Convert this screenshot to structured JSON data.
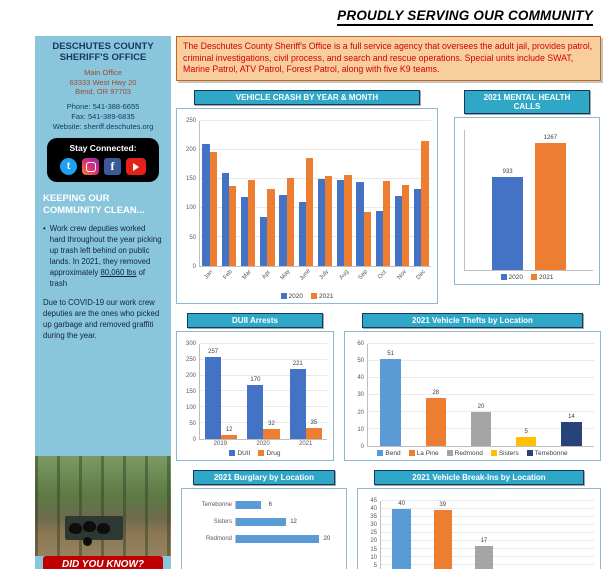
{
  "banner": {
    "text": "PROUDLY SERVING OUR COMMUNITY"
  },
  "sidebar": {
    "org_line1": "DESCHUTES COUNTY",
    "org_line2": "SHERIFF'S OFFICE",
    "address_lines": [
      "Main Office",
      "63333 West Hwy 20",
      "Bend, OR 97703"
    ],
    "contact_lines": [
      "Phone: 541-388-6655",
      "Fax: 541-389-6835",
      "Website: sheriff.deschutes.org"
    ],
    "stay_connected": "Stay Connected:",
    "social_icons": [
      "twitter-icon",
      "instagram-icon",
      "facebook-icon",
      "youtube-icon"
    ],
    "clean_heading": "KEEPING OUR COMMUNITY CLEAN...",
    "clean_text_pre": "Work crew deputies worked hard throughout the year picking up trash left behind on public lands. In 2021, they removed approximately ",
    "clean_text_underlined": "80,060 lbs",
    "clean_text_post": " of trash",
    "covid_text": "Due to COVID-19 our work crew deputies are the ones who picked up garbage and removed graffiti during the year.",
    "did_you_know": "DID YOU KNOW?"
  },
  "intro": {
    "text": "The Deschutes County Sheriff's Office is a full service agency that oversees the adult jail, provides patrol, criminal investigations, civil process, and search and rescue operations. Special units include SWAT, Marine Patrol, ATV Patrol, Forest Patrol, along with five K9 teams."
  },
  "chart_data": [
    {
      "type": "bar",
      "title": "VEHICLE CRASH BY YEAR & MONTH",
      "categories": [
        "Jan",
        "Feb",
        "Mar",
        "Apr",
        "May",
        "June",
        "July",
        "Aug",
        "Sep",
        "Oct",
        "Nov",
        "Dec"
      ],
      "series": [
        {
          "name": "2020",
          "color": "#4472C4",
          "values": [
            210,
            160,
            118,
            85,
            122,
            110,
            150,
            148,
            145,
            95,
            120,
            133
          ]
        },
        {
          "name": "2021",
          "color": "#ED7D31",
          "values": [
            196,
            138,
            148,
            133,
            152,
            186,
            155,
            157,
            92,
            146,
            140,
            215
          ]
        }
      ],
      "ylim": [
        0,
        250
      ],
      "ytick": 50,
      "show_xlabels": true,
      "rotate_x": true,
      "legend": [
        {
          "label": "2020",
          "color": "#4472C4"
        },
        {
          "label": "2021",
          "color": "#ED7D31"
        }
      ]
    },
    {
      "type": "bar",
      "title": "2021 MENTAL HEALTH CALLS",
      "categories": [
        ""
      ],
      "series": [
        {
          "name": "2020",
          "color": "#4472C4",
          "values": [
            933
          ]
        },
        {
          "name": "2021",
          "color": "#ED7D31",
          "values": [
            1267
          ]
        }
      ],
      "ylim": [
        0,
        1400
      ],
      "data_labels": true,
      "bar_pct": 24,
      "group_gap": 12,
      "legend": [
        {
          "label": "2020",
          "color": "#4472C4"
        },
        {
          "label": "2021",
          "color": "#ED7D31"
        }
      ]
    },
    {
      "type": "bar",
      "title": "DUII Arrests",
      "categories": [
        "2019",
        "2020",
        "2021"
      ],
      "series": [
        {
          "name": "DUII",
          "color": "#4472C4",
          "values": [
            257,
            170,
            221
          ]
        },
        {
          "name": "Drug",
          "color": "#ED7D31",
          "values": [
            12,
            32,
            35
          ]
        }
      ],
      "ylim": [
        0,
        300
      ],
      "ytick": 50,
      "data_labels": true,
      "show_xlabels": true,
      "legend": [
        {
          "label": "DUII",
          "color": "#4472C4"
        },
        {
          "label": "Drug",
          "color": "#ED7D31"
        }
      ]
    },
    {
      "type": "bar",
      "title": "2021 Vehicle Thefts by Location",
      "categories": [
        "Bend",
        "La Pine",
        "Redmond",
        "Sisters",
        "Terrebonne"
      ],
      "values": [
        51,
        28,
        20,
        5,
        14
      ],
      "colors": [
        "#5B9BD5",
        "#ED7D31",
        "#A5A5A5",
        "#FFC000",
        "#264478"
      ],
      "ylim": [
        0,
        60
      ],
      "ytick": 10,
      "data_labels": true,
      "legend": [
        {
          "label": "Bend",
          "color": "#5B9BD5"
        },
        {
          "label": "La Pine",
          "color": "#ED7D31"
        },
        {
          "label": "Redmond",
          "color": "#A5A5A5"
        },
        {
          "label": "Sisters",
          "color": "#FFC000"
        },
        {
          "label": "Terrebonne",
          "color": "#264478"
        }
      ]
    },
    {
      "type": "hbar",
      "title": "2021 Burglary by Location",
      "categories": [
        "Terrebonne",
        "Sisters",
        "Redmond"
      ],
      "values": [
        6,
        12,
        20
      ],
      "color": "#5B9BD5",
      "xlim": [
        0,
        25
      ],
      "data_labels": true
    },
    {
      "type": "bar",
      "title": "2021 Vehicle Break-Ins by Location",
      "categories": [
        "",
        "",
        ""
      ],
      "values": [
        40,
        39,
        17
      ],
      "colors": [
        "#5B9BD5",
        "#ED7D31",
        "#A5A5A5"
      ],
      "ylim": [
        0,
        45
      ],
      "ytick": 5,
      "data_labels": true,
      "bars_width": "58%"
    }
  ]
}
